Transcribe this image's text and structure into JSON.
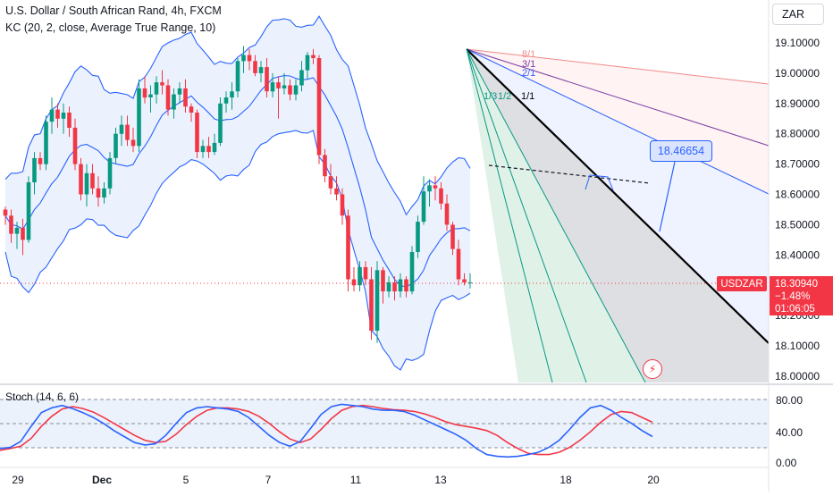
{
  "header": {
    "title": "U.S. Dollar / South African Rand, 4h, FXCM",
    "indicator": "KC (20, 2, close, Average True Range, 10)",
    "currency": "ZAR"
  },
  "price_axis": {
    "labels": [
      "19.10000",
      "19.00000",
      "18.90000",
      "18.80000",
      "18.70000",
      "18.60000",
      "18.50000",
      "18.40000",
      "18.30000",
      "18.20000",
      "18.10000",
      "18.00000"
    ]
  },
  "current_price": {
    "symbol": "USDZAR",
    "price": "18.30940",
    "change": "−1.48%",
    "countdown": "01:06:05"
  },
  "callout_value": "18.46654",
  "fan_labels": [
    "8/1",
    "3/1",
    "2/1",
    "1/1",
    "1/2",
    "1/3"
  ],
  "stoch": {
    "label": "Stoch (14, 6, 6)",
    "axis_labels": [
      "80.00",
      "40.00",
      "0.00"
    ]
  },
  "time_axis": {
    "labels": [
      "29",
      "Dec",
      "5",
      "7",
      "11",
      "13",
      "18",
      "20"
    ]
  },
  "colors": {
    "up": "#089981",
    "down": "#f23645",
    "keltner": "#2962ff",
    "k_line": "#2962ff",
    "d_line": "#f23645"
  },
  "chart_data": {
    "type": "candlestick",
    "title": "U.S. Dollar / South African Rand, 4h, FXCM",
    "ylim": [
      18.0,
      19.2
    ],
    "key_prices": {
      "top_high": 19.08,
      "swing_low": 18.11,
      "last": 18.3094,
      "measured_target": 18.46654
    },
    "candles": [
      [
        18.55,
        18.56,
        18.5,
        18.53
      ],
      [
        18.53,
        18.55,
        18.44,
        18.47
      ],
      [
        18.47,
        18.51,
        18.42,
        18.49
      ],
      [
        18.49,
        18.52,
        18.4,
        18.45
      ],
      [
        18.45,
        18.66,
        18.44,
        18.64
      ],
      [
        18.64,
        18.74,
        18.6,
        18.72
      ],
      [
        18.72,
        18.74,
        18.68,
        18.7
      ],
      [
        18.7,
        18.86,
        18.68,
        18.84
      ],
      [
        18.84,
        18.92,
        18.8,
        18.88
      ],
      [
        18.88,
        18.9,
        18.82,
        18.85
      ],
      [
        18.85,
        18.9,
        18.8,
        18.87
      ],
      [
        18.87,
        18.89,
        18.79,
        18.82
      ],
      [
        18.82,
        18.85,
        18.68,
        18.7
      ],
      [
        18.7,
        18.72,
        18.58,
        18.6
      ],
      [
        18.6,
        18.7,
        18.56,
        18.67
      ],
      [
        18.67,
        18.7,
        18.6,
        18.62
      ],
      [
        18.62,
        18.66,
        18.56,
        18.59
      ],
      [
        18.59,
        18.64,
        18.57,
        18.62
      ],
      [
        18.62,
        18.74,
        18.6,
        18.72
      ],
      [
        18.72,
        18.82,
        18.7,
        18.8
      ],
      [
        18.8,
        18.86,
        18.76,
        18.83
      ],
      [
        18.83,
        18.86,
        18.76,
        18.78
      ],
      [
        18.78,
        18.82,
        18.74,
        18.76
      ],
      [
        18.76,
        18.98,
        18.74,
        18.95
      ],
      [
        18.95,
        18.99,
        18.9,
        18.92
      ],
      [
        18.92,
        18.96,
        18.87,
        18.93
      ],
      [
        18.93,
        18.99,
        18.9,
        18.97
      ],
      [
        18.97,
        19.01,
        18.93,
        18.96
      ],
      [
        18.96,
        18.98,
        18.86,
        18.88
      ],
      [
        18.88,
        18.95,
        18.85,
        18.93
      ],
      [
        18.93,
        18.97,
        18.9,
        18.95
      ],
      [
        18.95,
        18.98,
        18.87,
        18.89
      ],
      [
        18.89,
        18.9,
        18.84,
        18.87
      ],
      [
        18.87,
        18.88,
        18.72,
        18.74
      ],
      [
        18.74,
        18.78,
        18.72,
        18.76
      ],
      [
        18.76,
        18.79,
        18.72,
        18.74
      ],
      [
        18.74,
        18.8,
        18.73,
        18.77
      ],
      [
        18.77,
        18.92,
        18.76,
        18.9
      ],
      [
        18.9,
        18.94,
        18.87,
        18.92
      ],
      [
        18.92,
        18.97,
        18.88,
        18.94
      ],
      [
        18.94,
        19.05,
        18.92,
        19.04
      ],
      [
        19.04,
        19.09,
        19.0,
        19.06
      ],
      [
        19.06,
        19.08,
        19.01,
        19.04
      ],
      [
        19.04,
        19.06,
        18.99,
        19.0
      ],
      [
        19.0,
        19.04,
        18.97,
        19.02
      ],
      [
        19.02,
        19.05,
        18.92,
        18.94
      ],
      [
        18.94,
        19.0,
        18.92,
        18.97
      ],
      [
        18.97,
        18.99,
        18.85,
        18.95
      ],
      [
        18.95,
        19.0,
        18.93,
        18.96
      ],
      [
        18.96,
        18.98,
        18.91,
        18.93
      ],
      [
        18.93,
        18.98,
        18.91,
        18.96
      ],
      [
        18.96,
        19.04,
        18.94,
        19.01
      ],
      [
        19.01,
        19.07,
        18.98,
        19.06
      ],
      [
        19.06,
        19.08,
        19.03,
        19.05
      ],
      [
        19.05,
        19.06,
        18.7,
        18.73
      ],
      [
        18.73,
        18.75,
        18.64,
        18.66
      ],
      [
        18.66,
        18.7,
        18.6,
        18.62
      ],
      [
        18.62,
        18.66,
        18.58,
        18.6
      ],
      [
        18.6,
        18.62,
        18.5,
        18.53
      ],
      [
        18.53,
        18.55,
        18.28,
        18.32
      ],
      [
        18.32,
        18.36,
        18.28,
        18.3
      ],
      [
        18.3,
        18.38,
        18.28,
        18.36
      ],
      [
        18.36,
        18.38,
        18.3,
        18.32
      ],
      [
        18.32,
        18.36,
        18.12,
        18.15
      ],
      [
        18.15,
        18.38,
        18.11,
        18.35
      ],
      [
        18.35,
        18.36,
        18.24,
        18.28
      ],
      [
        18.28,
        18.33,
        18.26,
        18.31
      ],
      [
        18.31,
        18.33,
        18.25,
        18.28
      ],
      [
        18.28,
        18.34,
        18.26,
        18.32
      ],
      [
        18.32,
        18.33,
        18.26,
        18.28
      ],
      [
        18.28,
        18.43,
        18.27,
        18.41
      ],
      [
        18.41,
        18.53,
        18.39,
        18.51
      ],
      [
        18.51,
        18.66,
        18.5,
        18.61
      ],
      [
        18.61,
        18.65,
        18.56,
        18.63
      ],
      [
        18.63,
        18.66,
        18.58,
        18.62
      ],
      [
        18.62,
        18.64,
        18.55,
        18.57
      ],
      [
        18.57,
        18.6,
        18.48,
        18.5
      ],
      [
        18.5,
        18.51,
        18.4,
        18.42
      ],
      [
        18.42,
        18.45,
        18.3,
        18.32
      ],
      [
        18.32,
        18.34,
        18.3,
        18.31
      ],
      [
        18.31,
        18.34,
        18.29,
        18.31
      ]
    ],
    "stochastic": {
      "k": [
        18,
        20,
        30,
        55,
        78,
        86,
        90,
        85,
        78,
        70,
        60,
        48,
        38,
        28,
        24,
        26,
        40,
        60,
        78,
        86,
        88,
        86,
        84,
        80,
        70,
        55,
        40,
        28,
        22,
        30,
        52,
        75,
        88,
        92,
        90,
        88,
        84,
        82,
        82,
        80,
        74,
        66,
        58,
        50,
        42,
        32,
        18,
        8,
        5,
        4,
        5,
        8,
        12,
        20,
        32,
        50,
        70,
        86,
        90,
        82,
        70,
        60,
        48,
        38
      ],
      "d": [
        15,
        18,
        22,
        35,
        55,
        72,
        84,
        88,
        85,
        79,
        70,
        60,
        50,
        40,
        32,
        28,
        30,
        42,
        58,
        72,
        82,
        86,
        86,
        84,
        80,
        72,
        60,
        46,
        34,
        28,
        34,
        50,
        68,
        82,
        88,
        90,
        88,
        85,
        83,
        82,
        80,
        76,
        70,
        63,
        58,
        55,
        52,
        48,
        40,
        28,
        18,
        10,
        8,
        8,
        12,
        20,
        32,
        46,
        62,
        75,
        80,
        78,
        70,
        62
      ]
    }
  }
}
